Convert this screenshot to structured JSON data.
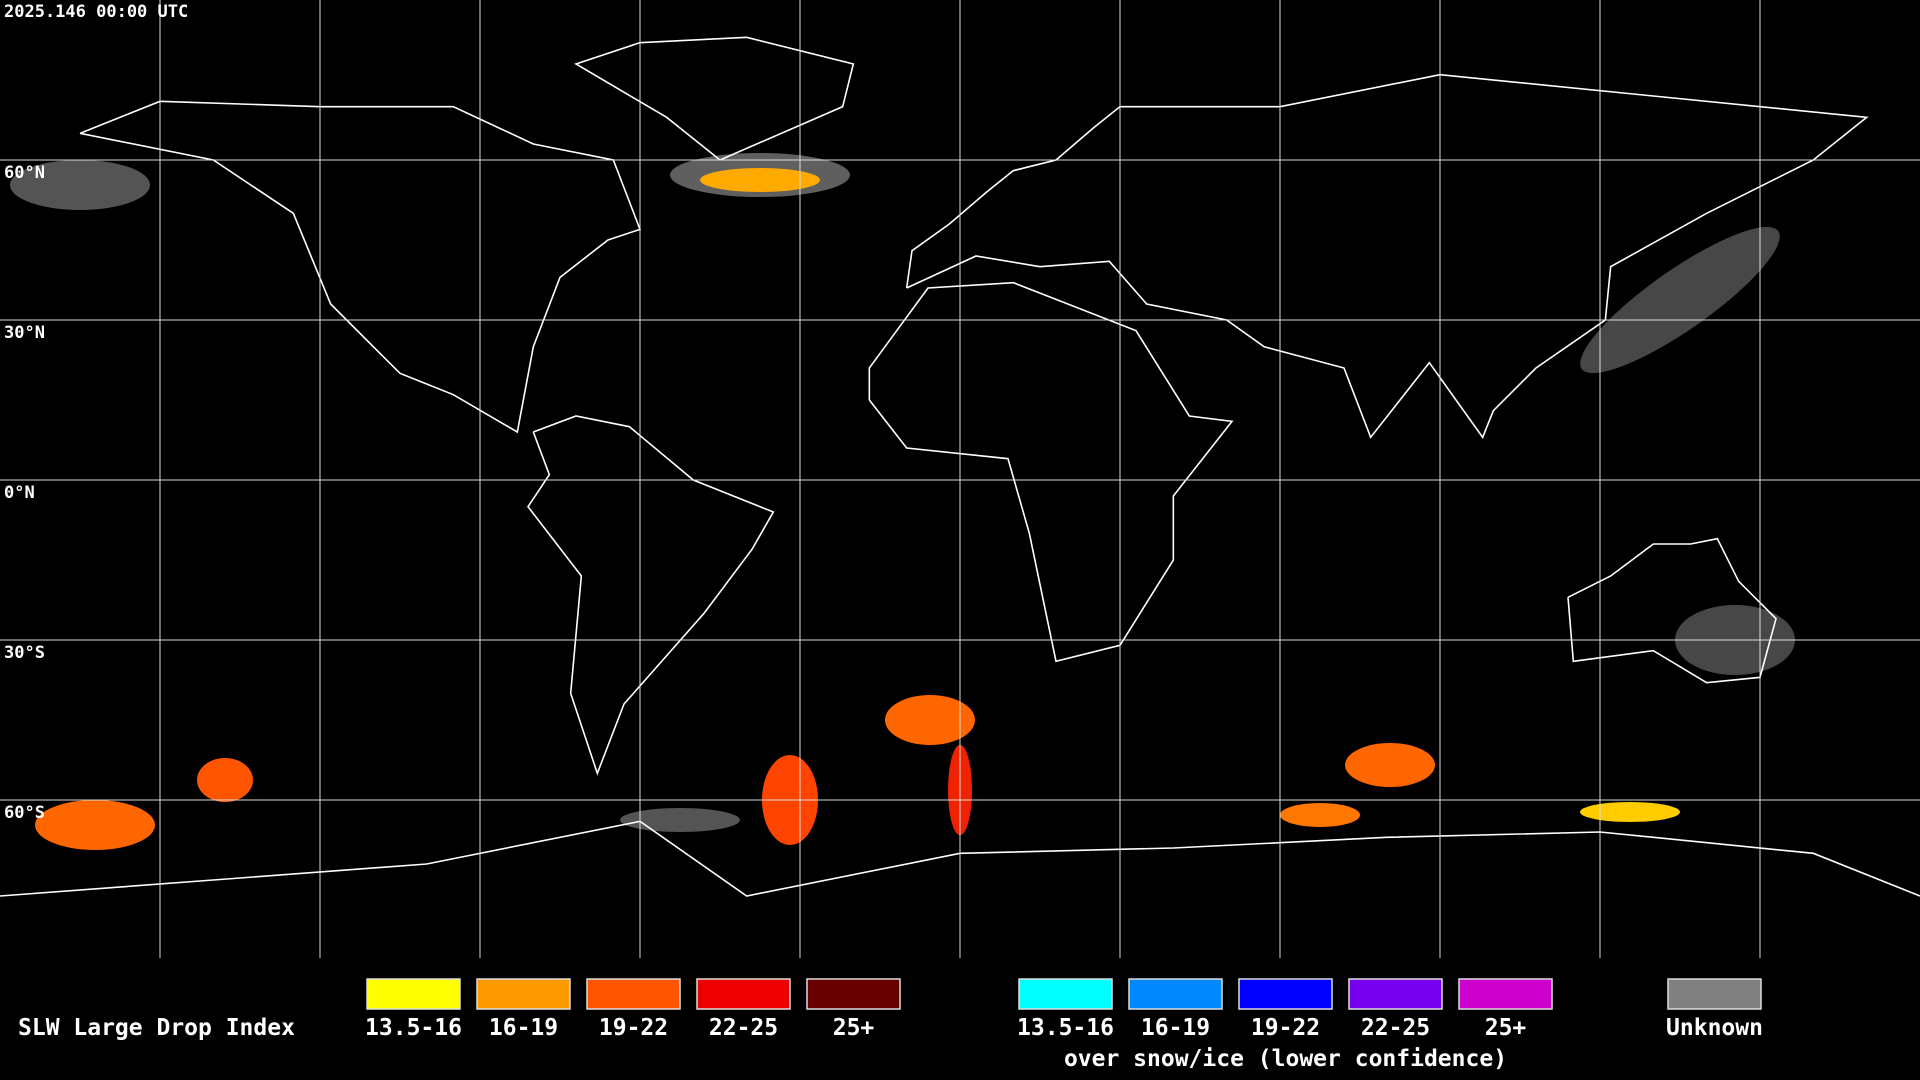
{
  "header": {
    "timestamp": "2025.146 00:00 UTC"
  },
  "map": {
    "latitude_labels": [
      "60°N",
      "30°N",
      "0°N",
      "30°S",
      "60°S"
    ]
  },
  "legend": {
    "title": "SLW Large Drop Index",
    "groups": [
      {
        "items": [
          {
            "label": "13.5-16",
            "color": "#ffff00"
          },
          {
            "label": "16-19",
            "color": "#ff9900"
          },
          {
            "label": "19-22",
            "color": "#ff5500"
          },
          {
            "label": "22-25",
            "color": "#ee0000"
          },
          {
            "label": "25+",
            "color": "#660000"
          }
        ]
      },
      {
        "items": [
          {
            "label": "13.5-16",
            "color": "#00ffff"
          },
          {
            "label": "16-19",
            "color": "#0088ff"
          },
          {
            "label": "19-22",
            "color": "#0000ff"
          },
          {
            "label": "22-25",
            "color": "#7700ee"
          },
          {
            "label": "25+",
            "color": "#cc00cc"
          }
        ],
        "caption": "over snow/ice (lower confidence)"
      },
      {
        "items": [
          {
            "label": "Unknown",
            "color": "#808080"
          }
        ]
      }
    ]
  }
}
